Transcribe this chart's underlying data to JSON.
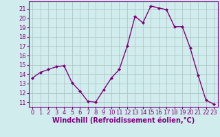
{
  "x": [
    0,
    1,
    2,
    3,
    4,
    5,
    6,
    7,
    8,
    9,
    10,
    11,
    12,
    13,
    14,
    15,
    16,
    17,
    18,
    19,
    20,
    21,
    22,
    23
  ],
  "y": [
    13.6,
    14.2,
    14.5,
    14.8,
    14.9,
    13.1,
    12.2,
    11.1,
    11.0,
    12.3,
    13.6,
    14.5,
    17.0,
    20.2,
    19.5,
    21.3,
    21.1,
    20.9,
    19.1,
    19.1,
    16.8,
    13.9,
    11.2,
    10.8
  ],
  "line_color": "#800080",
  "marker": "D",
  "marker_size": 2.0,
  "xlabel": "Windchill (Refroidissement éolien,°C)",
  "xlabel_fontsize": 7,
  "ylim": [
    10.5,
    21.8
  ],
  "yticks": [
    11,
    12,
    13,
    14,
    15,
    16,
    17,
    18,
    19,
    20,
    21
  ],
  "xticks": [
    0,
    1,
    2,
    3,
    4,
    5,
    6,
    7,
    8,
    9,
    10,
    11,
    12,
    13,
    14,
    15,
    16,
    17,
    18,
    19,
    20,
    21,
    22,
    23
  ],
  "grid_color": "#b0c8c8",
  "background_color": "#d0ecec",
  "tick_fontsize": 6,
  "linewidth": 1.0
}
